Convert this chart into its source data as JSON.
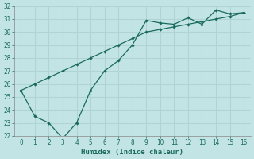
{
  "xlabel": "Humidex (Indice chaleur)",
  "background_color": "#c2e4e4",
  "grid_color": "#b0d4d4",
  "line_color": "#1a6b5a",
  "line1_x": [
    0,
    1,
    2,
    3,
    4,
    5,
    6,
    7,
    8,
    9,
    10,
    11,
    12,
    13,
    14,
    15,
    16
  ],
  "line1_y": [
    25.5,
    23.5,
    23.0,
    21.8,
    23.0,
    25.5,
    27.0,
    27.8,
    29.0,
    30.9,
    30.7,
    30.6,
    31.1,
    30.6,
    31.7,
    31.4,
    31.5
  ],
  "line2_x": [
    0,
    1,
    2,
    3,
    4,
    5,
    6,
    7,
    8,
    9,
    10,
    11,
    12,
    13,
    14,
    15,
    16
  ],
  "line2_y": [
    25.5,
    26.0,
    26.5,
    27.0,
    27.5,
    28.0,
    28.5,
    29.0,
    29.5,
    30.0,
    30.2,
    30.4,
    30.6,
    30.8,
    31.0,
    31.2,
    31.5
  ],
  "ylim": [
    22,
    32
  ],
  "xlim": [
    -0.5,
    16.5
  ],
  "yticks": [
    22,
    23,
    24,
    25,
    26,
    27,
    28,
    29,
    30,
    31,
    32
  ],
  "xticks": [
    0,
    1,
    2,
    3,
    4,
    5,
    6,
    7,
    8,
    9,
    10,
    11,
    12,
    13,
    14,
    15,
    16
  ],
  "tick_fontsize": 5.5,
  "label_fontsize": 6.5
}
